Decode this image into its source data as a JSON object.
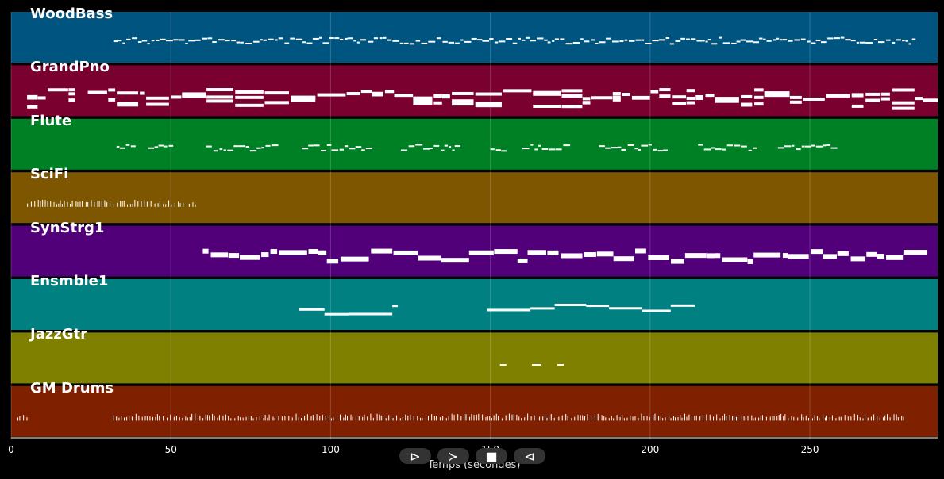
{
  "chart_data": {
    "type": "piano-roll",
    "xlabel": "Temps (secondes)",
    "xlim": [
      0,
      290
    ],
    "xticks": [
      0,
      50,
      100,
      150,
      200,
      250
    ],
    "grid": true,
    "tracks": [
      {
        "name": "WoodBass",
        "color": "#005580",
        "segments": [
          [
            32,
            283
          ]
        ],
        "style": "bass"
      },
      {
        "name": "GrandPno",
        "color": "#7a0030",
        "segments": [
          [
            5,
            20
          ],
          [
            24,
            290
          ]
        ],
        "style": "piano"
      },
      {
        "name": "Flute",
        "color": "#008025",
        "segments": [
          [
            33,
            39
          ],
          [
            43,
            50
          ],
          [
            61,
            83
          ],
          [
            91,
            113
          ],
          [
            122,
            139
          ],
          [
            150,
            155
          ],
          [
            160,
            173
          ],
          [
            184,
            205
          ],
          [
            215,
            233
          ],
          [
            240,
            257
          ]
        ],
        "style": "flute"
      },
      {
        "name": "SciFi",
        "color": "#7f5600",
        "segments": [
          [
            5,
            58
          ]
        ],
        "style": "ticks"
      },
      {
        "name": "SynStrg1",
        "color": "#52007a",
        "segments": [
          [
            60,
            287
          ]
        ],
        "style": "strings"
      },
      {
        "name": "Ensmble1",
        "color": "#008080",
        "segments": [
          [
            90,
            121
          ],
          [
            149,
            214
          ]
        ],
        "style": "ensemble"
      },
      {
        "name": "JazzGtr",
        "color": "#808000",
        "segments": [
          [
            153,
            155
          ],
          [
            163,
            166
          ],
          [
            171,
            173
          ]
        ],
        "style": "dots"
      },
      {
        "name": "GM Drums",
        "color": "#7f2000",
        "segments": [
          [
            2,
            5
          ],
          [
            32,
            280
          ]
        ],
        "style": "drums"
      }
    ]
  },
  "controls": {
    "play": "⊳",
    "forward": "≻",
    "stop": "■",
    "back": "⊲"
  }
}
